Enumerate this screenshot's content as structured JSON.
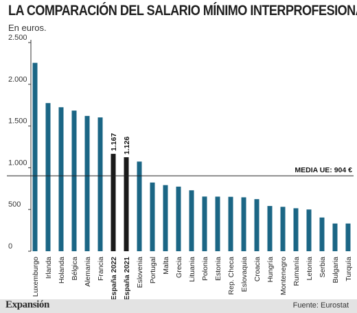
{
  "chart_data": {
    "type": "bar",
    "title": "LA COMPARACIÓN DEL SALARIO MÍNIMO INTERPROFESIONAL",
    "subtitle": "En euros.",
    "categories": [
      "Luxemburgo",
      "Irlanda",
      "Holanda",
      "Bélgica",
      "Alemania",
      "Francia",
      "España 2022",
      "España 2021",
      "Eslovenia",
      "Portugal",
      "Malta",
      "Grecia",
      "Lituania",
      "Polonia",
      "Estonia",
      "Rep. Checa",
      "Eslovaquia",
      "Croacia",
      "Hungría",
      "Montenegro",
      "Rumanía",
      "Letonia",
      "Serbia",
      "Bulgaria",
      "Turquía"
    ],
    "values": [
      2257,
      1775,
      1725,
      1685,
      1621,
      1603,
      1167,
      1126,
      1074,
      823,
      792,
      774,
      730,
      655,
      654,
      652,
      646,
      624,
      542,
      532,
      515,
      500,
      404,
      332,
      332
    ],
    "value_labels": {
      "6": "1.167",
      "7": "1.126"
    },
    "highlight_indices": [
      6,
      7
    ],
    "ylim": [
      0,
      2500
    ],
    "yticks": [
      0,
      500,
      1000,
      1500,
      2000,
      2500
    ],
    "ytick_labels": [
      "0",
      "500",
      "1.000",
      "1.500",
      "2.000",
      "2.500"
    ],
    "grid": false,
    "reference_line": {
      "value": 904,
      "label": "MEDIA UE: 904 €"
    },
    "colors": {
      "bar": "#1b6685",
      "highlight": "#1a1a1a",
      "axis": "#333333",
      "reference": "#222222"
    }
  },
  "footer": {
    "brand": "Expansión",
    "source": "Fuente: Eurostat"
  }
}
